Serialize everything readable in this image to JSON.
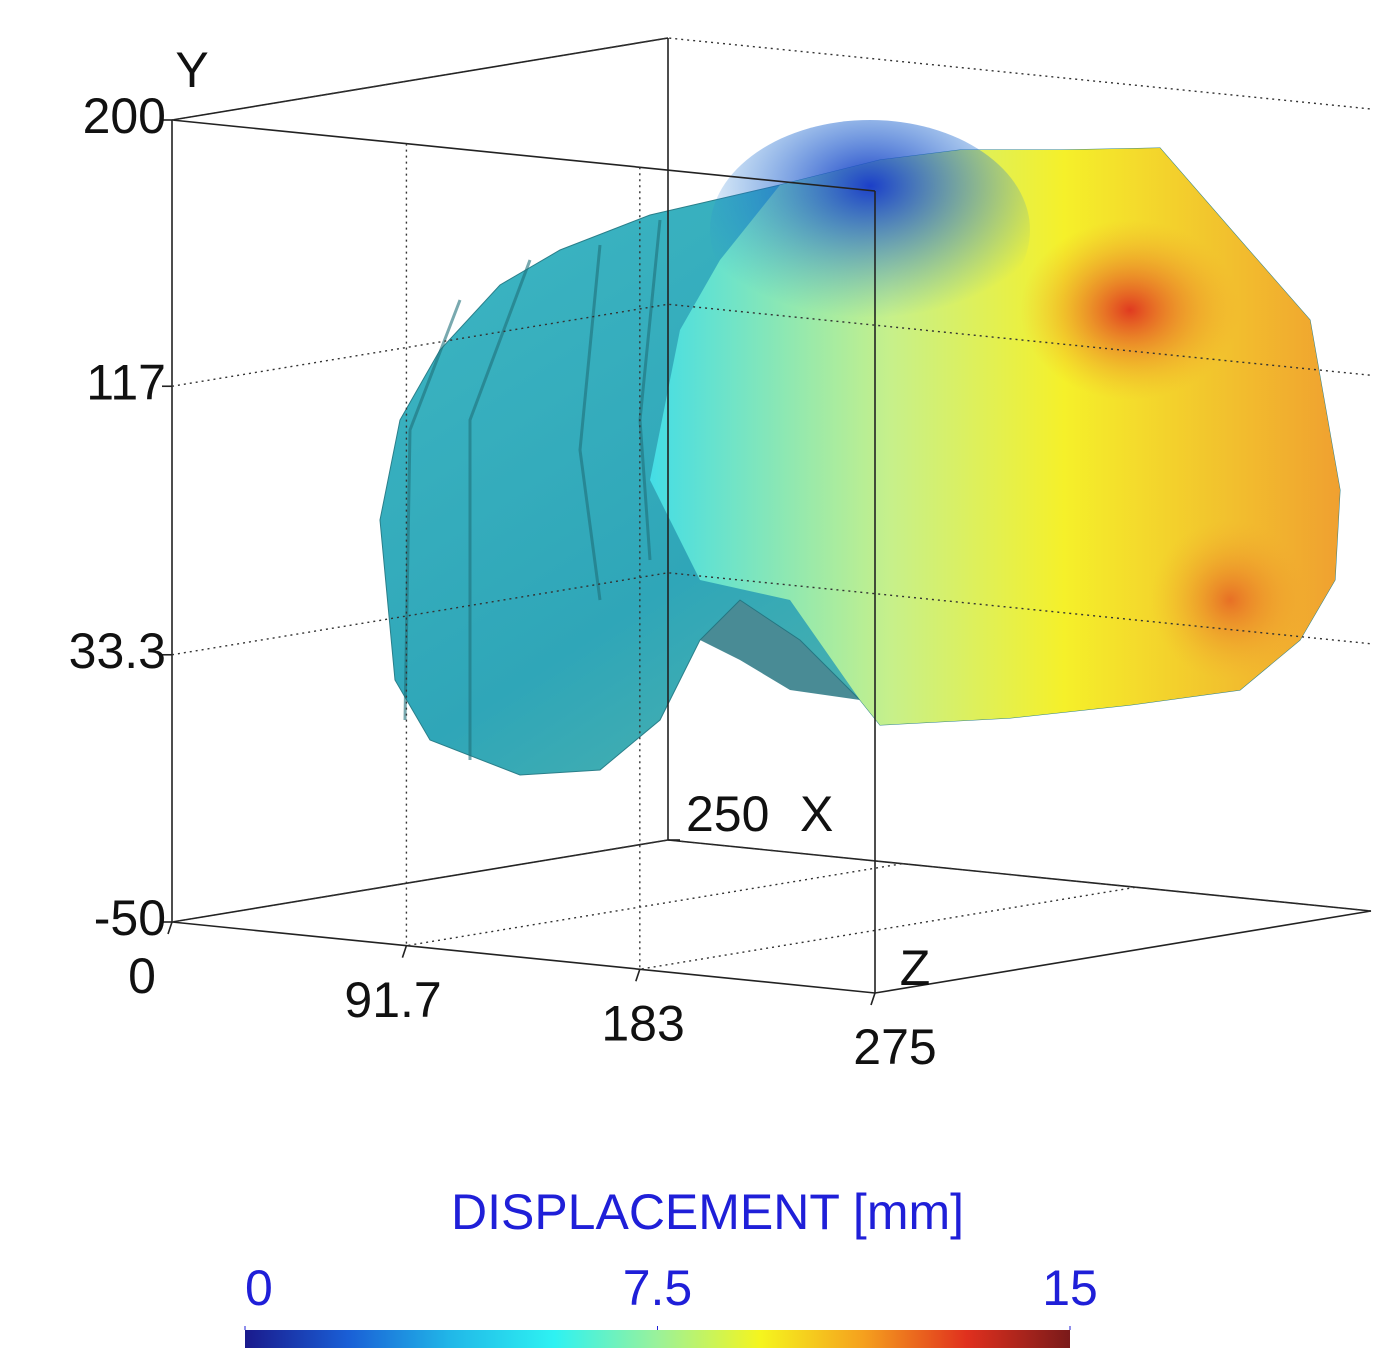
{
  "chart_data": {
    "type": "surface3d",
    "xlabel": "X",
    "ylabel": "Y",
    "zlabel": "Z",
    "xticks": [
      250
    ],
    "ylim": [
      -50,
      200
    ],
    "yticks": [
      -50,
      33.3,
      117,
      200
    ],
    "zlim": [
      0,
      275
    ],
    "zticks": [
      0,
      91.7,
      183,
      275
    ],
    "colorbar": {
      "title": "DISPLACEMENT [mm]",
      "lim": [
        0,
        15
      ],
      "ticks": [
        0,
        7.5,
        15
      ],
      "colors": [
        "#1a1a8c",
        "#1a5fd6",
        "#21b8e8",
        "#2ef2f2",
        "#9af29a",
        "#f5f51e",
        "#f5a01e",
        "#e0301e",
        "#7a1a1a"
      ]
    },
    "grid": true
  }
}
